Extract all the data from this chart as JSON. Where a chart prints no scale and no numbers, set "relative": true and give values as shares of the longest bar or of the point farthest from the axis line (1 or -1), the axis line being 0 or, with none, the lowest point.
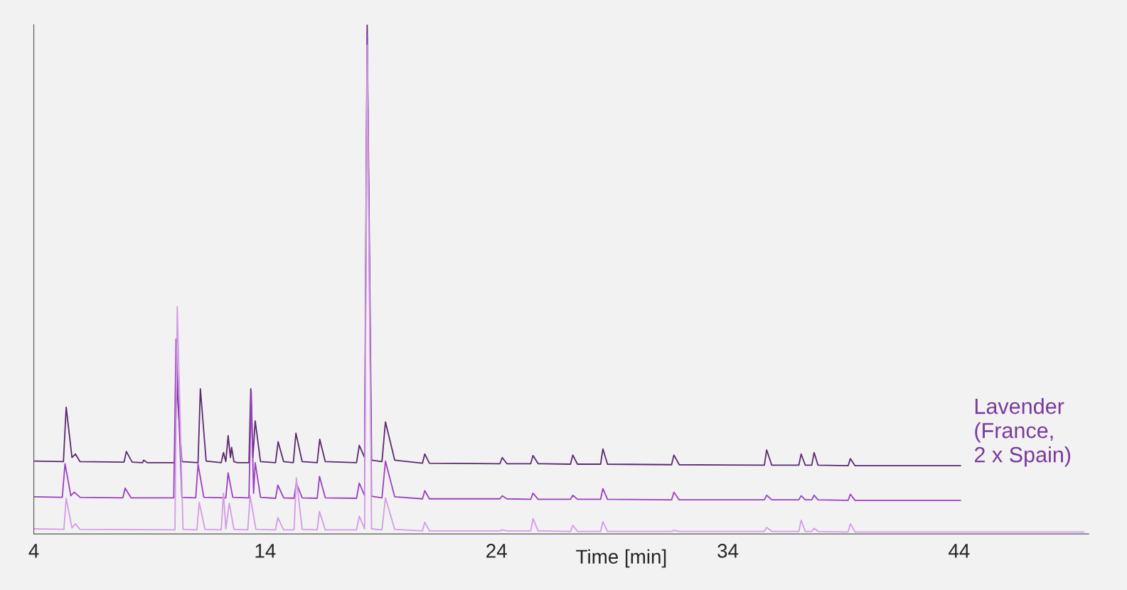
{
  "chart_data": {
    "type": "line",
    "relative": true,
    "xlabel": "Time [min]",
    "xlim": [
      4,
      49.6
    ],
    "xticks": [
      4,
      14,
      24,
      34,
      44
    ],
    "ylim": [
      0,
      1.0
    ],
    "grid": false,
    "legend": false,
    "marker": "none",
    "line_style": "solid",
    "annotations": [
      "Lavender\n(France,\n2 x Spain)"
    ],
    "series": [
      {
        "color": "#5a2a6e",
        "x": [
          4.0,
          5.28,
          5.4,
          5.65,
          5.8,
          6.0,
          7.9,
          8.0,
          8.25,
          8.7,
          8.75,
          8.9,
          10.08,
          10.18,
          10.4,
          11.1,
          11.2,
          11.45,
          12.1,
          12.2,
          12.3,
          12.4,
          12.5,
          12.55,
          12.65,
          12.8,
          13.3,
          13.38,
          13.47,
          13.57,
          13.8,
          14.45,
          14.56,
          14.8,
          15.22,
          15.33,
          15.6,
          16.25,
          16.36,
          16.6,
          17.95,
          18.07,
          18.3,
          18.41,
          18.6,
          19.05,
          19.2,
          19.6,
          20.8,
          20.9,
          21.1,
          24.15,
          24.25,
          24.45,
          25.48,
          25.58,
          25.8,
          27.2,
          27.3,
          27.5,
          28.5,
          28.6,
          28.8,
          31.57,
          31.67,
          31.9,
          35.58,
          35.68,
          35.9,
          37.07,
          37.17,
          37.35,
          37.63,
          37.73,
          37.9,
          39.2,
          39.3,
          39.5,
          44.06
        ],
        "values": [
          0.143,
          0.142,
          0.249,
          0.15,
          0.157,
          0.142,
          0.141,
          0.162,
          0.141,
          0.14,
          0.145,
          0.14,
          0.14,
          0.292,
          0.142,
          0.14,
          0.285,
          0.143,
          0.14,
          0.16,
          0.142,
          0.193,
          0.15,
          0.17,
          0.142,
          0.14,
          0.14,
          0.285,
          0.15,
          0.222,
          0.142,
          0.14,
          0.181,
          0.142,
          0.14,
          0.198,
          0.142,
          0.14,
          0.186,
          0.142,
          0.14,
          0.174,
          0.15,
          1.0,
          0.145,
          0.142,
          0.22,
          0.145,
          0.139,
          0.157,
          0.139,
          0.138,
          0.15,
          0.138,
          0.138,
          0.154,
          0.138,
          0.137,
          0.155,
          0.137,
          0.137,
          0.167,
          0.137,
          0.136,
          0.155,
          0.136,
          0.135,
          0.165,
          0.135,
          0.135,
          0.157,
          0.135,
          0.135,
          0.16,
          0.135,
          0.134,
          0.148,
          0.134,
          0.134
        ]
      },
      {
        "color": "#9b3fc0",
        "x": [
          4.0,
          5.23,
          5.35,
          5.6,
          5.75,
          6.0,
          7.85,
          7.95,
          8.2,
          10.05,
          10.15,
          10.4,
          11.0,
          11.1,
          11.35,
          12.3,
          12.4,
          12.6,
          13.3,
          13.4,
          13.5,
          13.57,
          13.8,
          14.45,
          14.55,
          14.8,
          15.25,
          15.35,
          15.6,
          16.25,
          16.35,
          16.6,
          17.95,
          18.07,
          18.3,
          18.41,
          18.6,
          19.05,
          19.2,
          19.6,
          20.8,
          20.9,
          21.1,
          24.15,
          24.25,
          24.45,
          25.48,
          25.58,
          25.8,
          27.2,
          27.3,
          27.5,
          28.5,
          28.6,
          28.8,
          31.57,
          31.67,
          31.9,
          35.58,
          35.68,
          35.9,
          37.07,
          37.17,
          37.35,
          37.63,
          37.73,
          37.9,
          39.2,
          39.3,
          39.5,
          44.06
        ],
        "values": [
          0.073,
          0.072,
          0.138,
          0.075,
          0.082,
          0.072,
          0.071,
          0.09,
          0.071,
          0.071,
          0.383,
          0.072,
          0.071,
          0.137,
          0.072,
          0.071,
          0.12,
          0.072,
          0.071,
          0.28,
          0.08,
          0.14,
          0.072,
          0.07,
          0.096,
          0.071,
          0.07,
          0.1,
          0.071,
          0.07,
          0.113,
          0.071,
          0.07,
          0.1,
          0.075,
          0.98,
          0.074,
          0.071,
          0.143,
          0.073,
          0.069,
          0.085,
          0.069,
          0.069,
          0.075,
          0.069,
          0.068,
          0.08,
          0.068,
          0.068,
          0.076,
          0.068,
          0.068,
          0.089,
          0.068,
          0.067,
          0.082,
          0.067,
          0.067,
          0.076,
          0.067,
          0.067,
          0.075,
          0.067,
          0.067,
          0.076,
          0.067,
          0.066,
          0.078,
          0.066,
          0.066
        ]
      },
      {
        "color": "#d49be8",
        "x": [
          4.0,
          5.3,
          5.4,
          5.65,
          5.8,
          6.0,
          10.1,
          10.2,
          10.45,
          11.05,
          11.15,
          11.4,
          12.1,
          12.2,
          12.3,
          12.45,
          12.65,
          13.25,
          13.35,
          13.6,
          14.45,
          14.55,
          14.8,
          15.25,
          15.35,
          15.6,
          16.25,
          16.35,
          16.6,
          17.95,
          18.07,
          18.3,
          18.41,
          18.6,
          19.05,
          19.2,
          19.6,
          20.8,
          20.9,
          21.1,
          24.15,
          24.25,
          24.45,
          25.48,
          25.58,
          25.8,
          27.2,
          27.3,
          27.5,
          28.5,
          28.6,
          28.8,
          31.57,
          31.67,
          31.9,
          35.58,
          35.68,
          35.9,
          37.07,
          37.17,
          37.35,
          37.63,
          37.73,
          37.9,
          39.2,
          39.3,
          39.5,
          49.4
        ],
        "values": [
          0.01,
          0.009,
          0.07,
          0.012,
          0.02,
          0.009,
          0.008,
          0.446,
          0.009,
          0.008,
          0.062,
          0.009,
          0.008,
          0.08,
          0.01,
          0.06,
          0.009,
          0.008,
          0.075,
          0.009,
          0.008,
          0.032,
          0.008,
          0.008,
          0.11,
          0.009,
          0.008,
          0.044,
          0.008,
          0.008,
          0.035,
          0.01,
          0.96,
          0.01,
          0.008,
          0.071,
          0.009,
          0.006,
          0.023,
          0.006,
          0.006,
          0.008,
          0.006,
          0.006,
          0.03,
          0.006,
          0.005,
          0.017,
          0.005,
          0.005,
          0.024,
          0.005,
          0.005,
          0.007,
          0.005,
          0.005,
          0.013,
          0.005,
          0.005,
          0.027,
          0.005,
          0.005,
          0.011,
          0.005,
          0.004,
          0.02,
          0.004,
          0.004
        ]
      }
    ]
  }
}
